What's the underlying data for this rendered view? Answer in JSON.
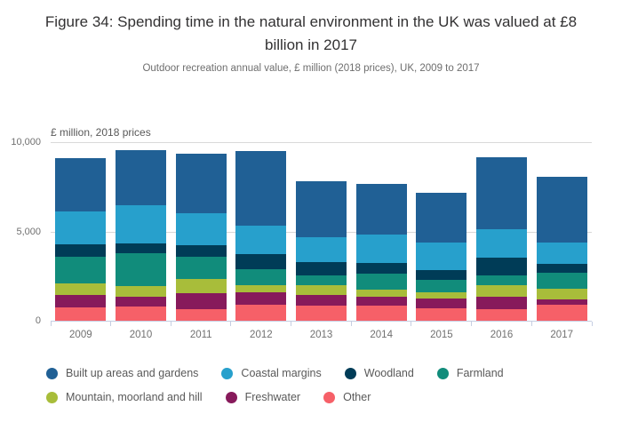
{
  "header": {
    "title": "Figure 34: Spending time in the natural environment in the UK was valued at £8 billion in 2017",
    "subtitle": "Outdoor recreation annual value, £ million (2018 prices), UK, 2009 to 2017"
  },
  "chart_data": {
    "type": "bar",
    "stacked": true,
    "title": "Figure 34: Spending time in the natural environment in the UK was valued at £8 billion in 2017",
    "subtitle": "Outdoor recreation annual value, £ million (2018 prices), UK, 2009 to 2017",
    "axis_title": "£ million, 2018 prices",
    "xlabel": "",
    "ylabel": "£ million, 2018 prices",
    "categories": [
      "2009",
      "2010",
      "2011",
      "2012",
      "2013",
      "2014",
      "2015",
      "2016",
      "2017"
    ],
    "series": [
      {
        "name": "Built up areas and gardens",
        "color": "#206095",
        "values": [
          2970,
          3070,
          3340,
          4170,
          3110,
          2860,
          2830,
          4040,
          3670
        ]
      },
      {
        "name": "Coastal margins",
        "color": "#27a0cc",
        "values": [
          1850,
          2150,
          1790,
          1620,
          1410,
          1570,
          1530,
          1610,
          1200
        ]
      },
      {
        "name": "Woodland",
        "color": "#003c57",
        "values": [
          730,
          550,
          670,
          810,
          750,
          580,
          550,
          960,
          510
        ]
      },
      {
        "name": "Farmland",
        "color": "#118c7b",
        "values": [
          1490,
          1850,
          1210,
          910,
          530,
          930,
          700,
          580,
          890
        ]
      },
      {
        "name": "Mountain, moorland and hill",
        "color": "#a8bd3a",
        "values": [
          630,
          580,
          830,
          420,
          550,
          400,
          350,
          650,
          590
        ]
      },
      {
        "name": "Freshwater",
        "color": "#871a5b",
        "values": [
          680,
          580,
          880,
          680,
          600,
          500,
          530,
          660,
          330
        ]
      },
      {
        "name": "Other",
        "color": "#f66068",
        "values": [
          760,
          780,
          650,
          900,
          850,
          830,
          700,
          660,
          880
        ]
      }
    ],
    "stack_order_bottom_to_top": [
      "Other",
      "Freshwater",
      "Mountain, moorland and hill",
      "Farmland",
      "Woodland",
      "Coastal margins",
      "Built up areas and gardens"
    ],
    "totals": [
      9110,
      9560,
      9370,
      9510,
      7800,
      7670,
      7190,
      9160,
      8070
    ],
    "ylim": [
      0,
      10000
    ],
    "yticks": [
      {
        "value": 10000,
        "label": "10,000"
      },
      {
        "value": 5000,
        "label": "5,000"
      },
      {
        "value": 0,
        "label": "0"
      }
    ],
    "grid": true,
    "legend_position": "bottom",
    "legend_rows": [
      4,
      3
    ]
  }
}
